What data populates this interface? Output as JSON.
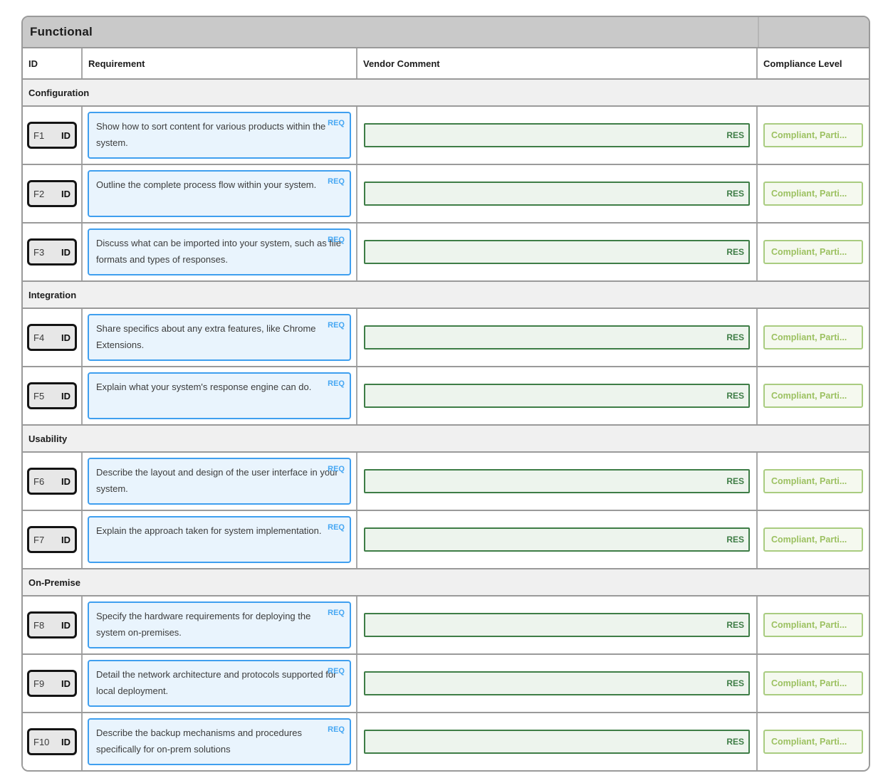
{
  "table": {
    "title": "Functional",
    "columns": {
      "id": "ID",
      "requirement": "Requirement",
      "vendor_comment": "Vendor Comment",
      "compliance_level": "Compliance Level"
    },
    "req_tag": "REQ",
    "res_tag": "RES",
    "id_tag": "ID",
    "compliance_value": "Compliant, Parti...",
    "colors": {
      "title_bar_bg": "#c9c9c9",
      "section_bg": "#f0f0f0",
      "req_border": "#3f9fef",
      "req_bg": "#e9f4fd",
      "res_border": "#3e7d46",
      "res_bg": "#edf4ed",
      "compliance_border": "#a9cc80",
      "compliance_text": "#9cc161"
    },
    "sections": [
      {
        "name": "Configuration",
        "rows": [
          {
            "id": "F1",
            "requirement": "Show how to sort content for various products within the system."
          },
          {
            "id": "F2",
            "requirement": "Outline the complete process flow within your system."
          },
          {
            "id": "F3",
            "requirement": "Discuss what can be imported into your system, such as file formats and types of responses."
          }
        ]
      },
      {
        "name": "Integration",
        "rows": [
          {
            "id": "F4",
            "requirement": "Share specifics about any extra features, like Chrome Extensions."
          },
          {
            "id": "F5",
            "requirement": "Explain what your system's response engine can do."
          }
        ]
      },
      {
        "name": "Usability",
        "rows": [
          {
            "id": "F6",
            "requirement": "Describe the layout and design of the user interface in your system."
          },
          {
            "id": "F7",
            "requirement": "Explain the approach taken for system implementation."
          }
        ]
      },
      {
        "name": "On-Premise",
        "rows": [
          {
            "id": "F8",
            "requirement": "Specify the hardware requirements for deploying the system on-premises."
          },
          {
            "id": "F9",
            "requirement": "Detail the network architecture and protocols supported for local deployment."
          },
          {
            "id": "F10",
            "requirement": "Describe the backup mechanisms and procedures specifically for on-prem solutions"
          }
        ]
      }
    ]
  }
}
